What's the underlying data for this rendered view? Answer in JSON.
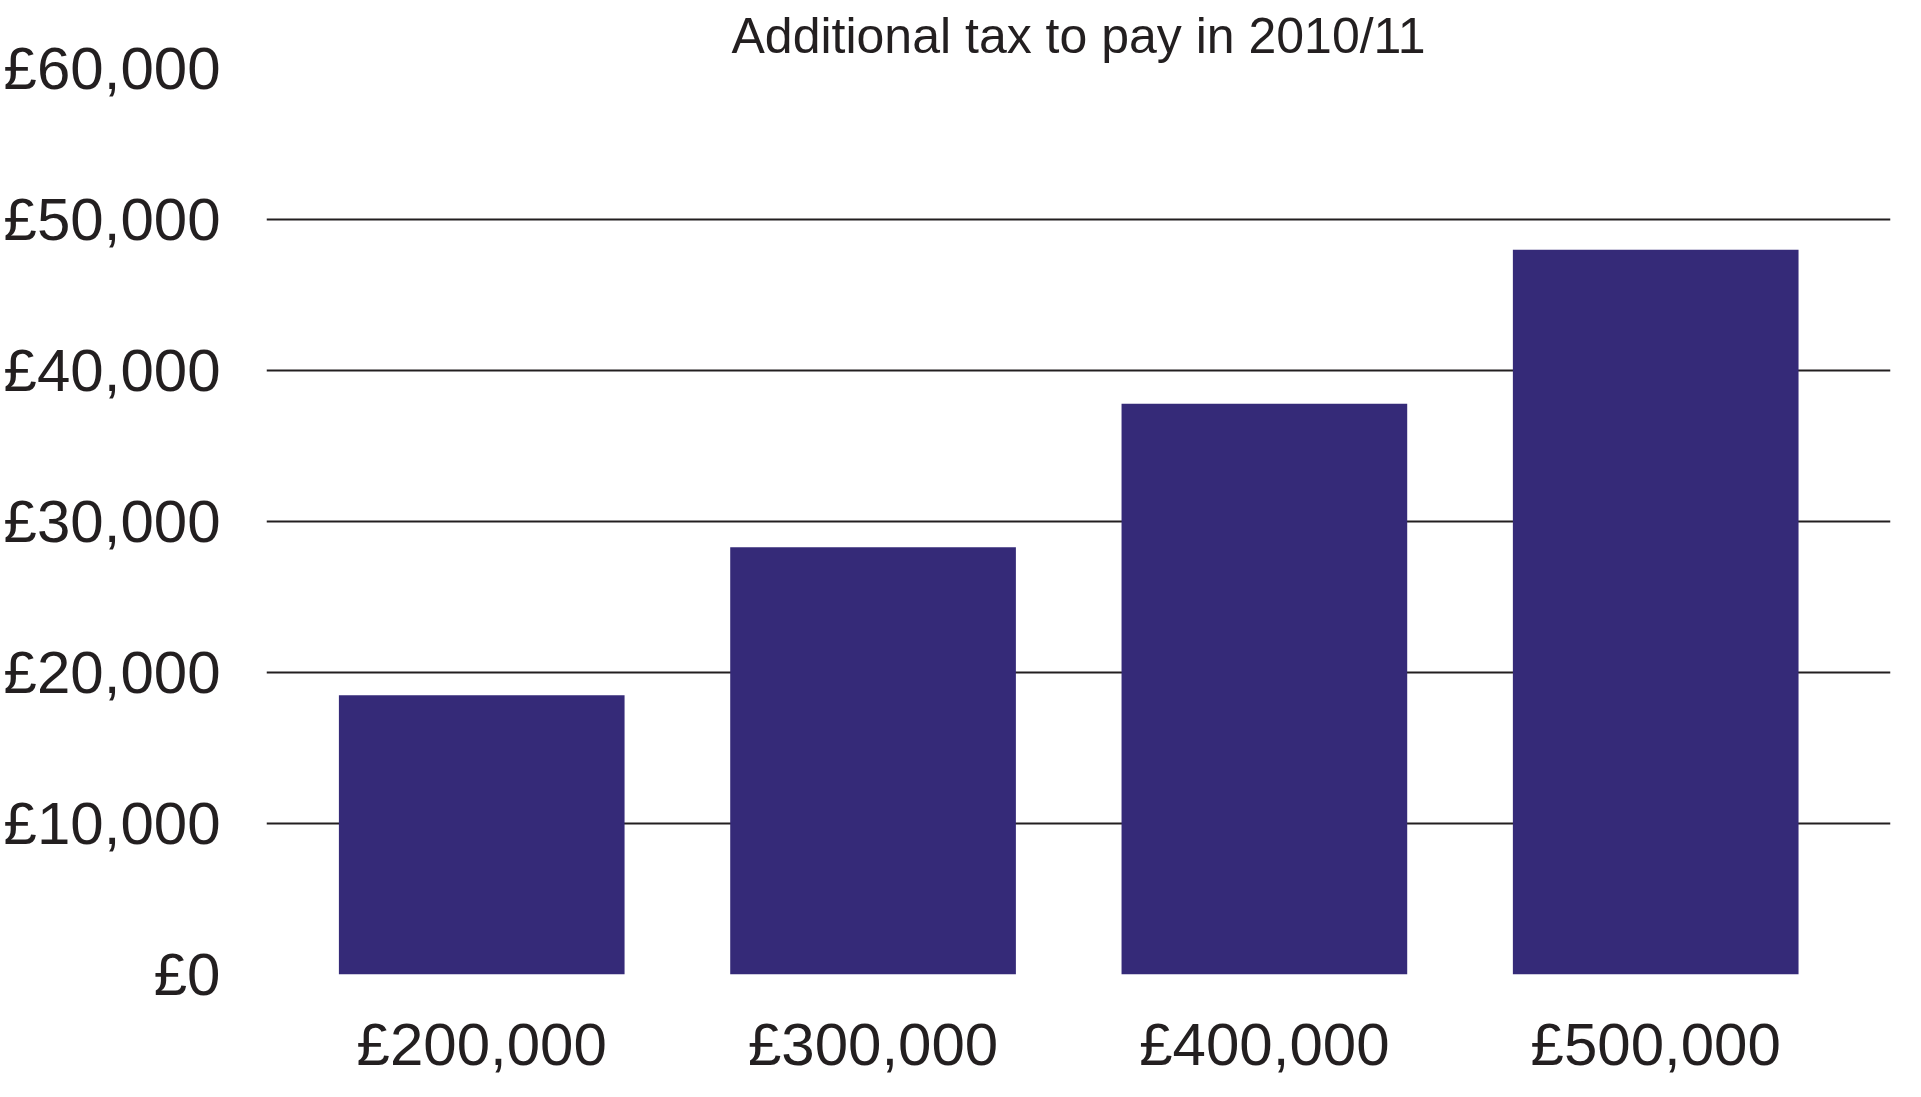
{
  "chart_data": {
    "type": "bar",
    "title": "Additional tax to pay in 2010/11",
    "categories": [
      "£200,000",
      "£300,000",
      "£400,000",
      "£500,000"
    ],
    "values": [
      18500,
      28300,
      37800,
      48000
    ],
    "color": "#352a78",
    "ylim": [
      0,
      60000
    ],
    "yticks": [
      {
        "value": 0,
        "label": "£0"
      },
      {
        "value": 10000,
        "label": "£10,000"
      },
      {
        "value": 20000,
        "label": "£20,000"
      },
      {
        "value": 30000,
        "label": "£30,000"
      },
      {
        "value": 40000,
        "label": "£40,000"
      },
      {
        "value": 50000,
        "label": "£50,000"
      },
      {
        "value": 60000,
        "label": "£60,000"
      }
    ],
    "grid": "y"
  }
}
